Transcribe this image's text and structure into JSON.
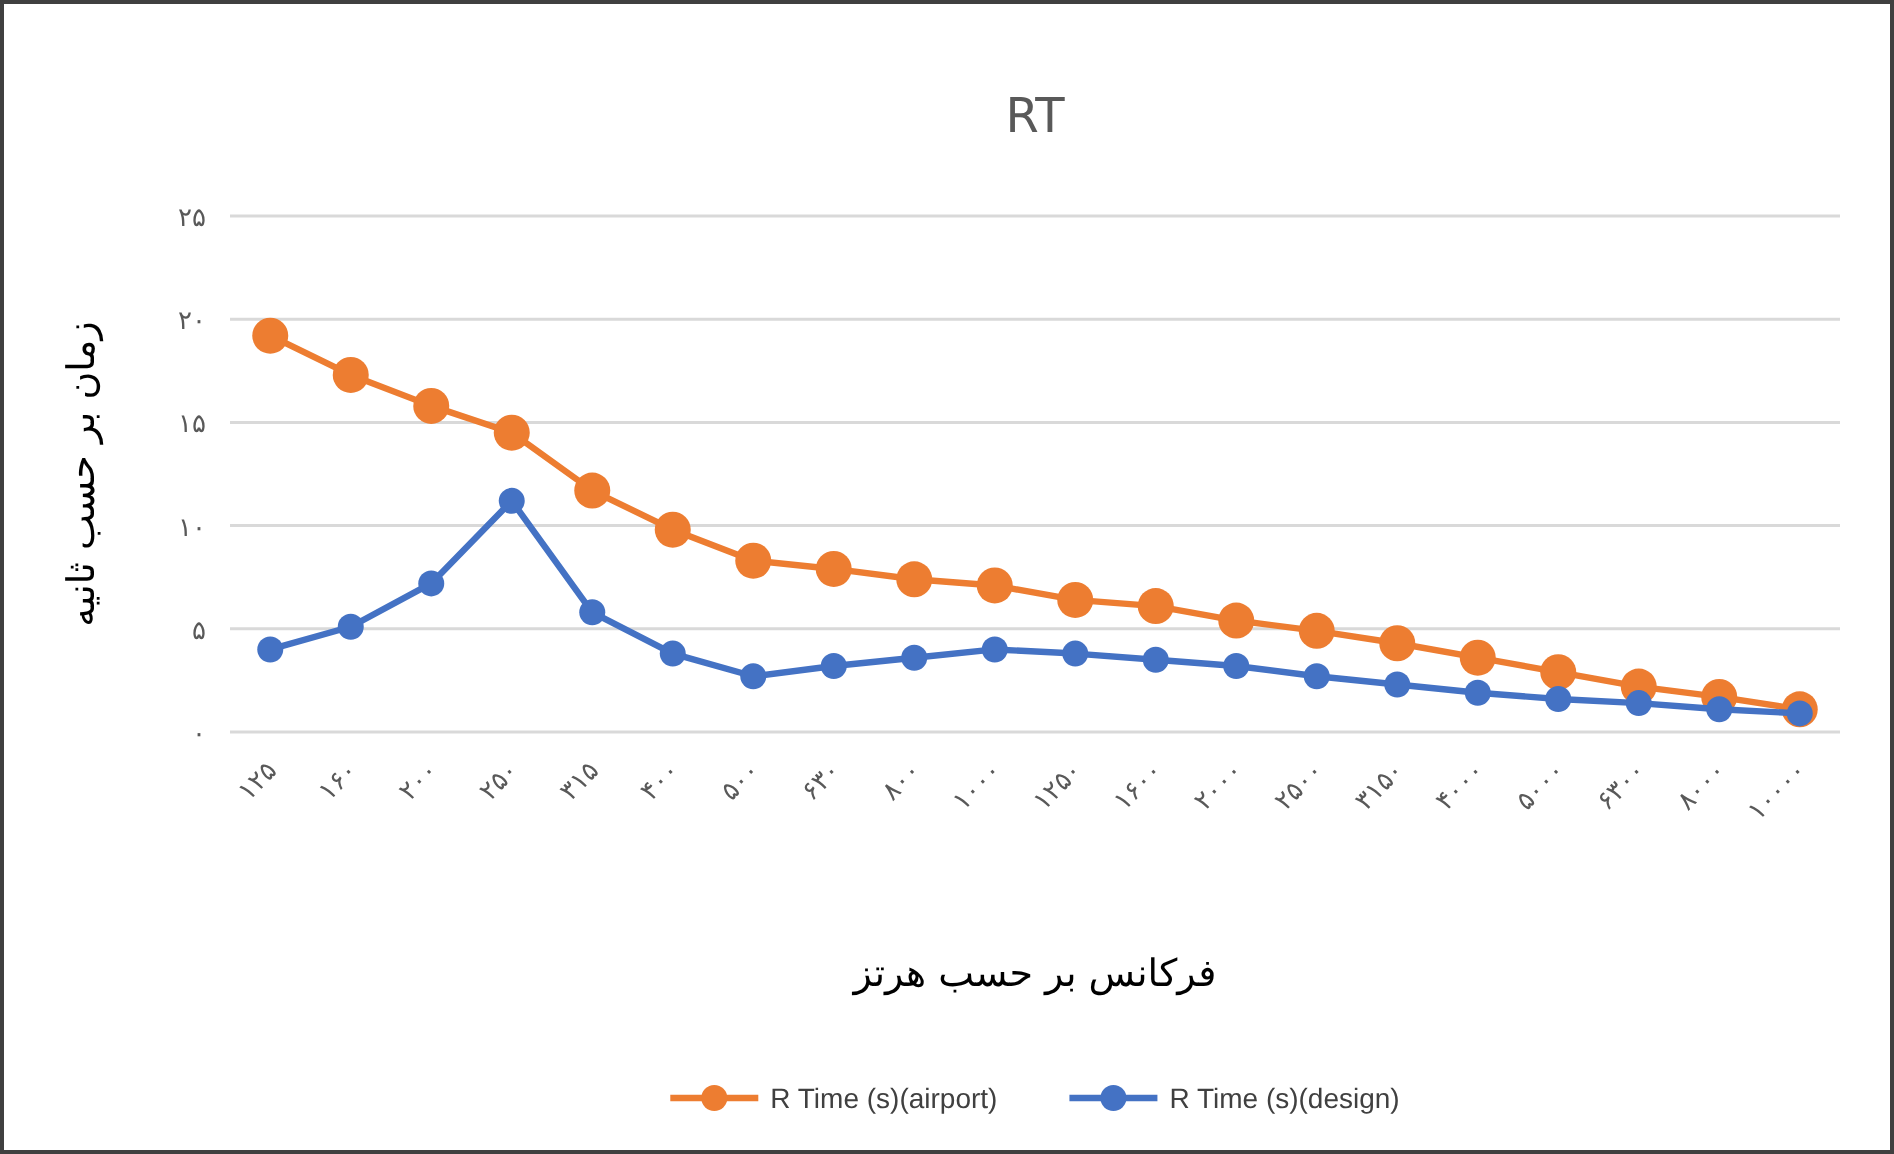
{
  "chart_data": {
    "type": "line",
    "title": "RT",
    "xlabel": "فرکانس بر حسب هرتز",
    "ylabel": "زمان بر حسب ثانیه",
    "categories": [
      "۱۲۵",
      "۱۶۰",
      "۲۰۰",
      "۲۵۰",
      "۳۱۵",
      "۴۰۰",
      "۵۰۰",
      "۶۳۰",
      "۸۰۰",
      "۱۰۰۰",
      "۱۲۵۰",
      "۱۶۰۰",
      "۲۰۰۰",
      "۲۵۰۰",
      "۳۱۵۰",
      "۴۰۰۰",
      "۵۰۰۰",
      "۶۳۰۰",
      "۸۰۰۰",
      "۱۰۰۰۰"
    ],
    "series": [
      {
        "name": "R Time (s)(airport)",
        "color": "#ed7d31",
        "values": [
          19.2,
          17.3,
          15.8,
          14.5,
          11.7,
          9.8,
          8.3,
          7.9,
          7.4,
          7.1,
          6.4,
          6.1,
          5.4,
          4.9,
          4.3,
          3.6,
          2.9,
          2.2,
          1.7,
          1.1
        ]
      },
      {
        "name": "R Time (s)(design)",
        "color": "#4472c4",
        "values": [
          4.0,
          5.1,
          7.2,
          11.2,
          5.8,
          3.8,
          2.7,
          3.2,
          3.6,
          4.0,
          3.8,
          3.5,
          3.2,
          2.7,
          2.3,
          1.9,
          1.6,
          1.4,
          1.1,
          0.9
        ]
      }
    ],
    "ylim": [
      0,
      25
    ],
    "yticks": [
      {
        "value": 0,
        "label": "۰"
      },
      {
        "value": 5,
        "label": "۵"
      },
      {
        "value": 10,
        "label": "۱۰"
      },
      {
        "value": 15,
        "label": "۱۵"
      },
      {
        "value": 20,
        "label": "۲۰"
      },
      {
        "value": 25,
        "label": "۲۵"
      }
    ],
    "grid": "y",
    "legend": "bottom",
    "marker": "circle",
    "line_style": "solid"
  }
}
